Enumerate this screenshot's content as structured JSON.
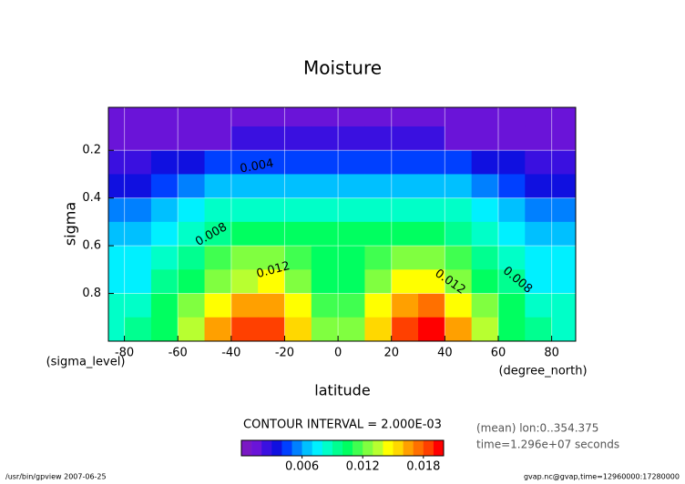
{
  "chart_data": {
    "type": "contour",
    "title": "Moisture",
    "x_label": "latitude",
    "x_units": "(degree_north)",
    "y_label": "sigma",
    "y_units": "(sigma_level)",
    "contour_interval": "CONTOUR INTERVAL = 2.000E-03",
    "notes": [
      "(mean) lon:0..354.375",
      "time=1.296e+07 seconds"
    ],
    "footer_left": "/usr/bin/gpview  2007-06-25",
    "footer_right": "gvap.nc@gvap,time=12960000:17280000",
    "contour_labels": [
      "0.004",
      "0.008",
      "0.012",
      "0.012",
      "0.008"
    ],
    "x": [
      -85,
      -75,
      -65,
      -55,
      -45,
      -35,
      -25,
      -15,
      -5,
      5,
      15,
      25,
      35,
      45,
      55,
      65,
      75,
      85
    ],
    "y": [
      0.05,
      0.15,
      0.25,
      0.35,
      0.45,
      0.55,
      0.65,
      0.75,
      0.85,
      0.95
    ],
    "z": [
      [
        0.001,
        0.001,
        0.001,
        0.001,
        0.001,
        0.001,
        0.001,
        0.001,
        0.001,
        0.001,
        0.001,
        0.001,
        0.001,
        0.001,
        0.001,
        0.001,
        0.001,
        0.001
      ],
      [
        0.001,
        0.001,
        0.001,
        0.001,
        0.001,
        0.002,
        0.002,
        0.002,
        0.002,
        0.002,
        0.002,
        0.002,
        0.002,
        0.001,
        0.001,
        0.001,
        0.001,
        0.001
      ],
      [
        0.002,
        0.002,
        0.003,
        0.003,
        0.004,
        0.004,
        0.004,
        0.004,
        0.004,
        0.004,
        0.004,
        0.004,
        0.004,
        0.004,
        0.003,
        0.003,
        0.002,
        0.002
      ],
      [
        0.003,
        0.003,
        0.004,
        0.005,
        0.006,
        0.006,
        0.006,
        0.006,
        0.006,
        0.006,
        0.006,
        0.006,
        0.006,
        0.006,
        0.005,
        0.004,
        0.003,
        0.003
      ],
      [
        0.005,
        0.005,
        0.006,
        0.007,
        0.008,
        0.008,
        0.008,
        0.008,
        0.008,
        0.008,
        0.008,
        0.008,
        0.008,
        0.008,
        0.007,
        0.006,
        0.005,
        0.005
      ],
      [
        0.006,
        0.006,
        0.007,
        0.008,
        0.009,
        0.01,
        0.01,
        0.01,
        0.01,
        0.01,
        0.01,
        0.01,
        0.01,
        0.009,
        0.008,
        0.007,
        0.006,
        0.006
      ],
      [
        0.007,
        0.007,
        0.008,
        0.009,
        0.011,
        0.012,
        0.012,
        0.011,
        0.01,
        0.01,
        0.011,
        0.012,
        0.012,
        0.011,
        0.009,
        0.008,
        0.007,
        0.007
      ],
      [
        0.007,
        0.007,
        0.009,
        0.01,
        0.012,
        0.013,
        0.014,
        0.012,
        0.01,
        0.01,
        0.012,
        0.014,
        0.014,
        0.012,
        0.01,
        0.009,
        0.007,
        0.007
      ],
      [
        0.008,
        0.008,
        0.01,
        0.012,
        0.014,
        0.016,
        0.016,
        0.014,
        0.011,
        0.011,
        0.014,
        0.016,
        0.017,
        0.014,
        0.012,
        0.01,
        0.008,
        0.008
      ],
      [
        0.008,
        0.009,
        0.01,
        0.013,
        0.016,
        0.018,
        0.018,
        0.015,
        0.012,
        0.012,
        0.015,
        0.018,
        0.019,
        0.016,
        0.013,
        0.01,
        0.009,
        0.008
      ]
    ],
    "xlim": [
      -86,
      89
    ],
    "xticks": [
      -80,
      -60,
      -40,
      -20,
      0,
      20,
      40,
      60,
      80
    ],
    "ylim": [
      0.02,
      1.0
    ],
    "yticks": [
      0.2,
      0.4,
      0.6,
      0.8
    ],
    "y_inverted": true,
    "grid": true,
    "palette": [
      "#7a18c4",
      "#6a14d8",
      "#3a10e0",
      "#1010e0",
      "#0040ff",
      "#0080ff",
      "#00c0ff",
      "#00f0ff",
      "#00ffc8",
      "#00ff90",
      "#00ff60",
      "#40ff50",
      "#80ff40",
      "#b8ff30",
      "#ffff00",
      "#ffd800",
      "#ffa000",
      "#ff7000",
      "#ff4000",
      "#ff0000"
    ],
    "colorbar_range": [
      0,
      0.02
    ],
    "colorbar_ticks": [
      0.006,
      0.012,
      0.018
    ]
  }
}
